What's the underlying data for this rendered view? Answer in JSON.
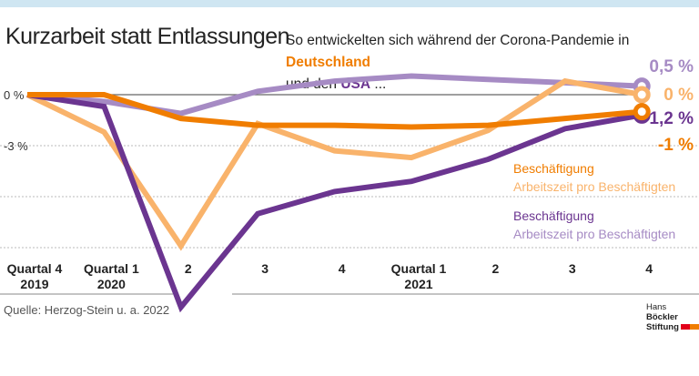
{
  "title": "Kurzarbeit statt Entlassungen",
  "subtitle": {
    "pre": "So entwickelten sich während der Corona-Pandemie in ",
    "de": "Deutschland",
    "mid": " und den ",
    "us": "USA",
    "post": " ..."
  },
  "source": "Quelle: Herzog-Stein u. a. 2022",
  "logo": {
    "line1a": "Hans ",
    "line1b": "Böckler",
    "line2": "Stiftung"
  },
  "colors": {
    "de_emp": "#f07d00",
    "de_hours": "#f9b36b",
    "us_emp": "#6b3590",
    "us_hours": "#a68bc4",
    "band": "#cfe6f2"
  },
  "chart_data": {
    "type": "line",
    "categories": [
      [
        "Quartal 4",
        "2019"
      ],
      [
        "Quartal 1",
        "2020"
      ],
      [
        "2",
        ""
      ],
      [
        "3",
        ""
      ],
      [
        "4",
        ""
      ],
      [
        "Quartal 1",
        "2021"
      ],
      [
        "2",
        ""
      ],
      [
        "3",
        ""
      ],
      [
        "4",
        ""
      ]
    ],
    "yticks": [
      {
        "v": 0,
        "label": "0 %"
      },
      {
        "v": -3,
        "label": "-3 %"
      },
      {
        "v": -6,
        "label": ""
      },
      {
        "v": -9,
        "label": ""
      }
    ],
    "ylim": [
      -12.5,
      1.3
    ],
    "series": [
      {
        "name": "Arbeitszeit pro Beschäftigten",
        "group": "USA",
        "color": "#a68bc4",
        "values": [
          0,
          -0.4,
          -1.1,
          0.2,
          0.8,
          1.1,
          0.9,
          0.7,
          0.5
        ],
        "end_label": "0,5 %"
      },
      {
        "name": "Arbeitszeit pro Beschäftigten",
        "group": "Deutschland",
        "color": "#f9b36b",
        "values": [
          0,
          -2.2,
          -8.9,
          -1.7,
          -3.3,
          -3.7,
          -2.1,
          0.8,
          0
        ],
        "end_label": "0 %"
      },
      {
        "name": "Beschäftigung",
        "group": "USA",
        "color": "#6b3590",
        "values": [
          0,
          -0.7,
          -12.5,
          -7.0,
          -5.7,
          -5.1,
          -3.8,
          -2.0,
          -1.2
        ],
        "end_label": "-1,2 %"
      },
      {
        "name": "Beschäftigung",
        "group": "Deutschland",
        "color": "#f07d00",
        "values": [
          0,
          0,
          -1.4,
          -1.8,
          -1.8,
          -1.9,
          -1.8,
          -1.4,
          -1.0
        ],
        "end_label": "-1 %"
      }
    ],
    "legend": [
      {
        "label": "Beschäftigung",
        "color": "#f07d00"
      },
      {
        "label": "Arbeitszeit pro Beschäftigten",
        "color": "#f9b36b"
      },
      {
        "label": "Beschäftigung",
        "color": "#6b3590"
      },
      {
        "label": "Arbeitszeit pro Beschäftigten",
        "color": "#a68bc4"
      }
    ]
  }
}
